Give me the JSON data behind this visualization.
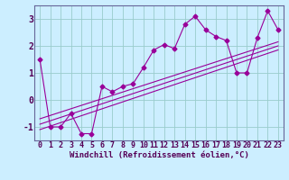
{
  "xlabel": "Windchill (Refroidissement éolien,°C)",
  "background_color": "#cceeff",
  "grid_color": "#99cccc",
  "line_color": "#990099",
  "spine_color": "#666699",
  "tick_color": "#550055",
  "x_data": [
    0,
    1,
    2,
    3,
    4,
    5,
    6,
    7,
    8,
    9,
    10,
    11,
    12,
    13,
    14,
    15,
    16,
    17,
    18,
    19,
    20,
    21,
    22,
    23
  ],
  "y_main": [
    1.5,
    -1.0,
    -1.0,
    -0.5,
    -1.25,
    -1.25,
    0.5,
    0.3,
    0.5,
    0.6,
    1.2,
    1.85,
    2.05,
    1.9,
    2.8,
    3.1,
    2.6,
    2.35,
    2.2,
    1.0,
    1.0,
    2.3,
    3.3,
    2.6
  ],
  "regression_lines": [
    {
      "x": [
        0,
        23
      ],
      "y": [
        -1.1,
        1.85
      ]
    },
    {
      "x": [
        0,
        23
      ],
      "y": [
        -0.9,
        2.0
      ]
    },
    {
      "x": [
        0,
        23
      ],
      "y": [
        -0.7,
        2.15
      ]
    }
  ],
  "xlim": [
    -0.5,
    23.5
  ],
  "ylim": [
    -1.5,
    3.5
  ],
  "yticks": [
    -1,
    0,
    1,
    2,
    3
  ],
  "xticks": [
    0,
    1,
    2,
    3,
    4,
    5,
    6,
    7,
    8,
    9,
    10,
    11,
    12,
    13,
    14,
    15,
    16,
    17,
    18,
    19,
    20,
    21,
    22,
    23
  ],
  "xlabel_fontsize": 6.5,
  "tick_fontsize": 6,
  "ytick_fontsize": 7
}
